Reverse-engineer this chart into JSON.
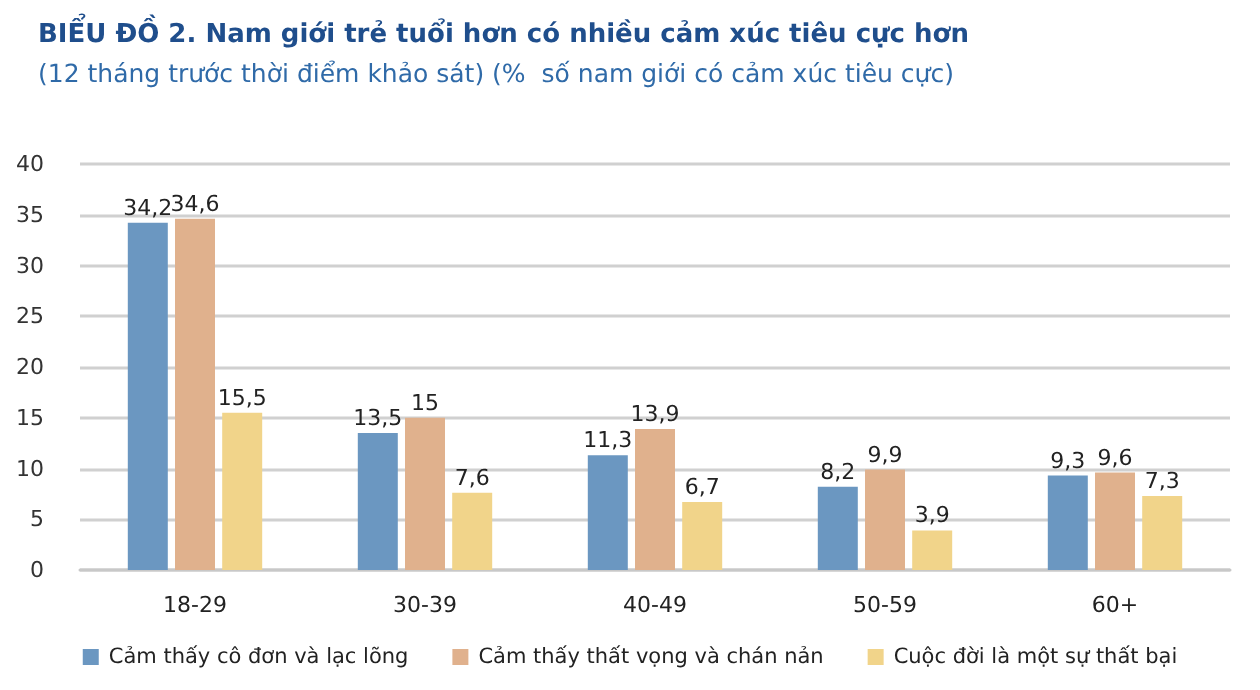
{
  "chart_data": {
    "type": "bar",
    "title": "BIỂU ĐỒ 2. Nam giới trẻ tuổi hơn có nhiều cảm xúc tiêu cực hơn",
    "subtitle": "(12 tháng trước thời điểm khảo sát) (%  số nam giới có cảm xúc tiêu cực)",
    "categories": [
      "18-29",
      "30-39",
      "40-49",
      "50-59",
      "60+"
    ],
    "series": [
      {
        "name": "Cảm thấy cô đơn và lạc lõng",
        "color": "#6b97c1",
        "values": [
          34.2,
          13.5,
          11.3,
          8.2,
          9.3
        ],
        "value_labels": [
          "34,2",
          "13,5",
          "11,3",
          "8,2",
          "9,3"
        ]
      },
      {
        "name": "Cảm thấy thất vọng và chán nản",
        "color": "#e0b18d",
        "values": [
          34.6,
          15,
          13.9,
          9.9,
          9.6
        ],
        "value_labels": [
          "34,6",
          "15",
          "13,9",
          "9,9",
          "9,6"
        ]
      },
      {
        "name": "Cuộc đời là một sự thất bại",
        "color": "#f1d48a",
        "values": [
          15.5,
          7.6,
          6.7,
          3.9,
          7.3
        ],
        "value_labels": [
          "15,5",
          "7,6",
          "6,7",
          "3,9",
          "7,3"
        ]
      }
    ],
    "ylim": [
      0,
      40
    ],
    "yticks": [
      0,
      5,
      10,
      15,
      20,
      25,
      30,
      35,
      40
    ],
    "grid": "y",
    "legend": "bottom"
  }
}
